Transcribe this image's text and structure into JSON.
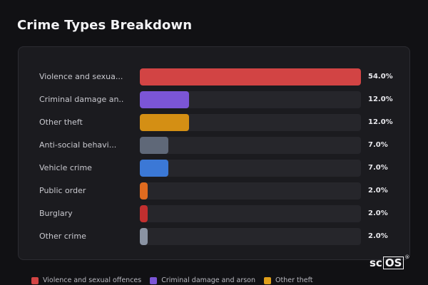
{
  "title": "Crime Types Breakdown",
  "chart_data": {
    "type": "bar",
    "orientation": "horizontal",
    "xlim": [
      0,
      54
    ],
    "categories": [
      "Violence and sexua...",
      "Criminal damage an...",
      "Other theft",
      "Anti-social behavi...",
      "Vehicle crime",
      "Public order",
      "Burglary",
      "Other crime"
    ],
    "values": [
      54.0,
      12.0,
      12.0,
      7.0,
      7.0,
      2.0,
      2.0,
      2.0
    ],
    "value_labels": [
      "54.0%",
      "12.0%",
      "12.0%",
      "7.0%",
      "7.0%",
      "2.0%",
      "2.0%",
      "2.0%"
    ],
    "colors": [
      "#d24444",
      "#7b55d6",
      "#d48f14",
      "#5f6878",
      "#3b78d6",
      "#e06b1f",
      "#c22f2f",
      "#8a93a3"
    ]
  },
  "legend": [
    {
      "label": "Violence and sexual offences",
      "color": "#d24444"
    },
    {
      "label": "Criminal damage and arson",
      "color": "#7b55d6"
    },
    {
      "label": "Other theft",
      "color": "#e09f1a"
    }
  ],
  "logo": {
    "prefix": "sc",
    "boxed": "OS",
    "mark": "®"
  }
}
